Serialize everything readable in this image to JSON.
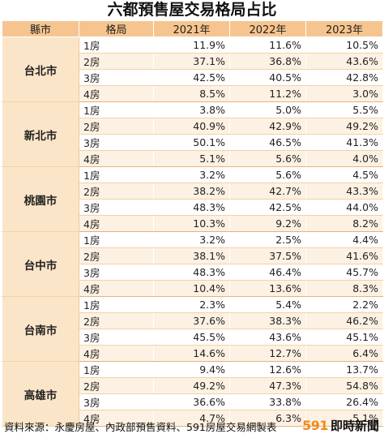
{
  "title": "六都預售屋交易格局占比",
  "headers": {
    "city": "縣市",
    "layout": "格局",
    "years": [
      "2021年",
      "2022年",
      "2023年"
    ]
  },
  "cities": [
    {
      "name": "台北市",
      "rows": [
        {
          "layout": "1房",
          "values": [
            "11.9%",
            "11.6%",
            "10.5%"
          ]
        },
        {
          "layout": "2房",
          "values": [
            "37.1%",
            "36.8%",
            "43.6%"
          ]
        },
        {
          "layout": "3房",
          "values": [
            "42.5%",
            "40.5%",
            "42.8%"
          ]
        },
        {
          "layout": "4房",
          "values": [
            "8.5%",
            "11.2%",
            "3.0%"
          ]
        }
      ]
    },
    {
      "name": "新北市",
      "rows": [
        {
          "layout": "1房",
          "values": [
            "3.8%",
            "5.0%",
            "5.5%"
          ]
        },
        {
          "layout": "2房",
          "values": [
            "40.9%",
            "42.9%",
            "49.2%"
          ]
        },
        {
          "layout": "3房",
          "values": [
            "50.1%",
            "46.5%",
            "41.3%"
          ]
        },
        {
          "layout": "4房",
          "values": [
            "5.1%",
            "5.6%",
            "4.0%"
          ]
        }
      ]
    },
    {
      "name": "桃園市",
      "rows": [
        {
          "layout": "1房",
          "values": [
            "3.2%",
            "5.6%",
            "4.5%"
          ]
        },
        {
          "layout": "2房",
          "values": [
            "38.2%",
            "42.7%",
            "43.3%"
          ]
        },
        {
          "layout": "3房",
          "values": [
            "48.3%",
            "42.5%",
            "44.0%"
          ]
        },
        {
          "layout": "4房",
          "values": [
            "10.3%",
            "9.2%",
            "8.2%"
          ]
        }
      ]
    },
    {
      "name": "台中市",
      "rows": [
        {
          "layout": "1房",
          "values": [
            "3.2%",
            "2.5%",
            "4.4%"
          ]
        },
        {
          "layout": "2房",
          "values": [
            "38.1%",
            "37.5%",
            "41.6%"
          ]
        },
        {
          "layout": "3房",
          "values": [
            "48.3%",
            "46.4%",
            "45.7%"
          ]
        },
        {
          "layout": "4房",
          "values": [
            "10.4%",
            "13.6%",
            "8.3%"
          ]
        }
      ]
    },
    {
      "name": "台南市",
      "rows": [
        {
          "layout": "1房",
          "values": [
            "2.3%",
            "5.4%",
            "2.2%"
          ]
        },
        {
          "layout": "2房",
          "values": [
            "37.6%",
            "38.3%",
            "46.2%"
          ]
        },
        {
          "layout": "3房",
          "values": [
            "45.5%",
            "43.6%",
            "45.1%"
          ]
        },
        {
          "layout": "4房",
          "values": [
            "14.6%",
            "12.7%",
            "6.4%"
          ]
        }
      ]
    },
    {
      "name": "高雄市",
      "rows": [
        {
          "layout": "1房",
          "values": [
            "9.4%",
            "12.6%",
            "13.7%"
          ]
        },
        {
          "layout": "2房",
          "values": [
            "49.2%",
            "47.3%",
            "54.8%"
          ]
        },
        {
          "layout": "3房",
          "values": [
            "36.6%",
            "33.8%",
            "26.4%"
          ]
        },
        {
          "layout": "4房",
          "values": [
            "4.7%",
            "6.3%",
            "5.1%"
          ]
        }
      ]
    }
  ],
  "footer": {
    "source": "資料來源：永慶房屋、內政部預售資料、591房屋交易網製表",
    "brand_number": "591",
    "brand_name": "即時新聞"
  },
  "colors": {
    "header_bg": "#f6c58f",
    "city_bg": "#fbe5c8",
    "row_shade": "#fdf1e3",
    "brand_accent": "#f08a1c"
  }
}
